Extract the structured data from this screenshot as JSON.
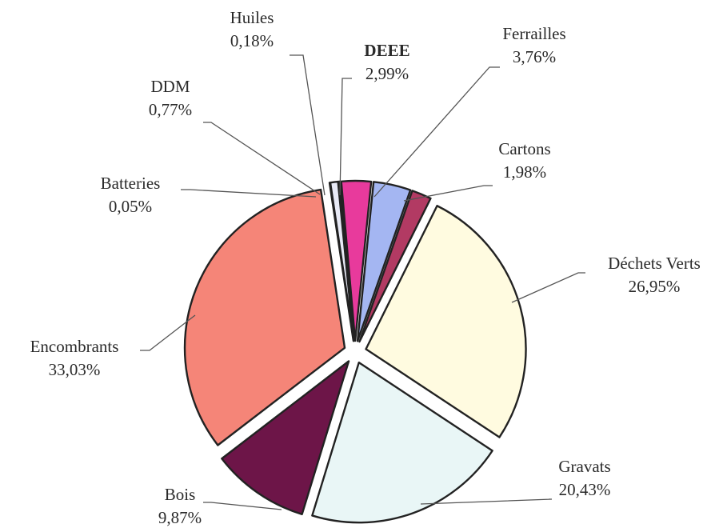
{
  "chart_data": {
    "type": "pie",
    "title": "",
    "slices": [
      {
        "label": "DEEE",
        "value": 2.99,
        "display": "2,99%",
        "color": "#e83a9c",
        "bold": true
      },
      {
        "label": "Ferrailles",
        "value": 3.76,
        "display": "3,76%",
        "color": "#a4b6f2"
      },
      {
        "label": "Cartons",
        "value": 1.98,
        "display": "1,98%",
        "color": "#b23a63"
      },
      {
        "label": "Déchets Verts",
        "value": 26.95,
        "display": "26,95%",
        "color": "#fffbe0"
      },
      {
        "label": "Gravats",
        "value": 20.43,
        "display": "20,43%",
        "color": "#e9f6f6"
      },
      {
        "label": "Bois",
        "value": 9.87,
        "display": "9,87%",
        "color": "#6d1548"
      },
      {
        "label": "Encombrants",
        "value": 33.03,
        "display": "33,03%",
        "color": "#f58578"
      },
      {
        "label": "Batteries",
        "value": 0.05,
        "display": "0,05%",
        "color": "#9a9a9a"
      },
      {
        "label": "DDM",
        "value": 0.77,
        "display": "0,77%",
        "color": "#e8eaf6"
      },
      {
        "label": "Huiles",
        "value": 0.18,
        "display": "0,18%",
        "color": "#c4b4d4"
      }
    ],
    "legend": "none",
    "data_labels": "outside, with leader lines"
  }
}
